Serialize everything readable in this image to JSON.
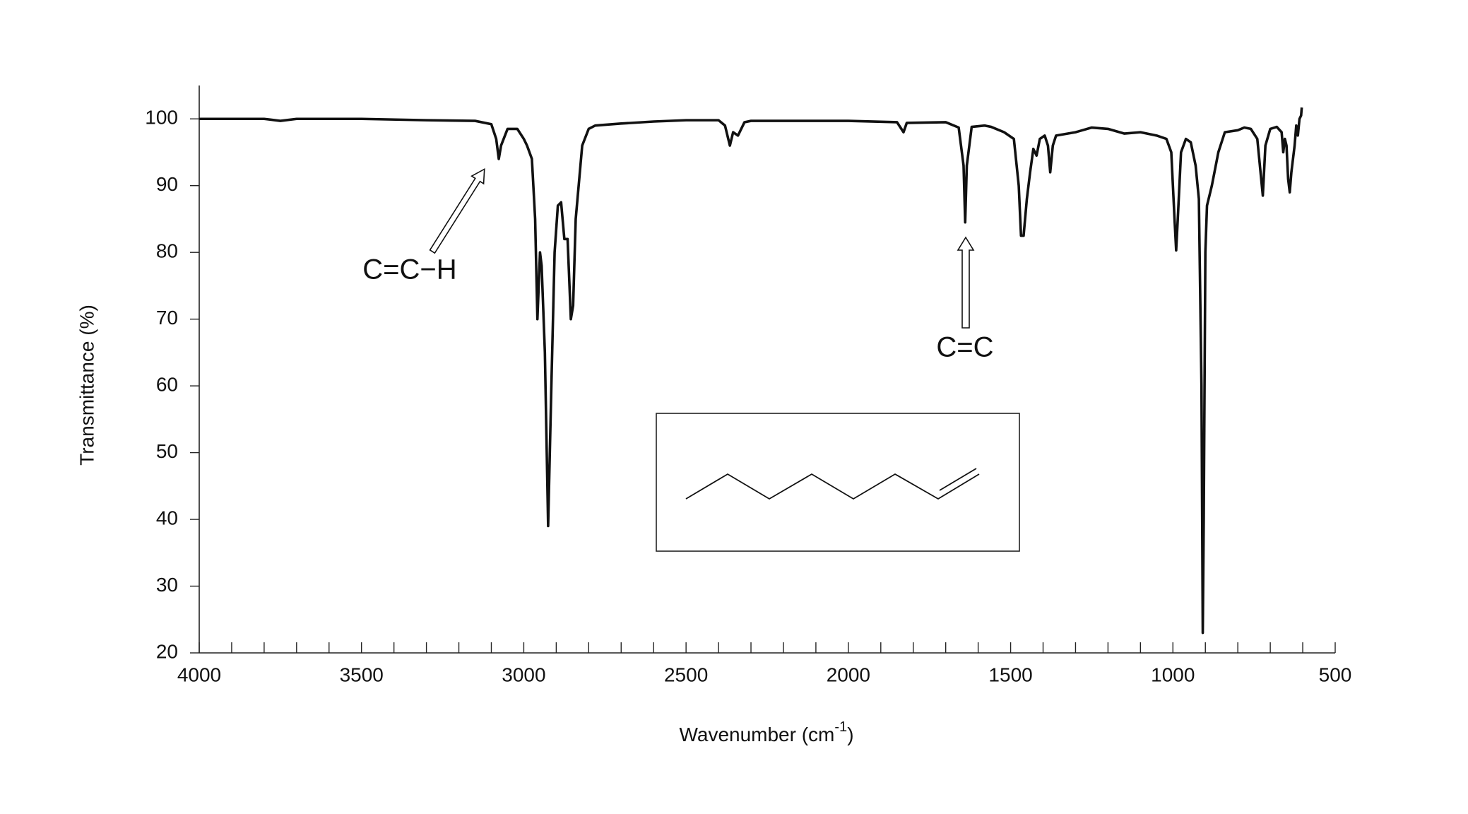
{
  "chart_data": {
    "type": "line",
    "y_label": "Transmittance (%)",
    "x_label": {
      "text": "Wavenumber (cm",
      "sup": "-1",
      "tail": ")"
    },
    "annotations": [
      "C=C−H",
      "C=C"
    ],
    "color": "#111111",
    "xlim": [
      4000,
      500
    ],
    "ylim": [
      20,
      105
    ],
    "xticks": [
      4000,
      3500,
      3000,
      2500,
      2000,
      1500,
      1000,
      500
    ],
    "xminorticks": [
      3900,
      3800,
      3700,
      3600,
      3400,
      3300,
      3200,
      3100,
      2900,
      2800,
      2700,
      2600,
      2400,
      2300,
      2200,
      2100,
      1900,
      1800,
      1700,
      1600,
      1400,
      1300,
      1200,
      1100,
      900,
      800,
      700,
      600
    ],
    "yticks": [
      20,
      30,
      40,
      50,
      60,
      70,
      80,
      90,
      100
    ],
    "x": [
      4000,
      3800,
      3750,
      3700,
      3500,
      3300,
      3150,
      3100,
      3085,
      3077,
      3070,
      3050,
      3020,
      3000,
      2990,
      2975,
      2965,
      2958,
      2950,
      2945,
      2935,
      2925,
      2915,
      2905,
      2895,
      2885,
      2875,
      2865,
      2855,
      2848,
      2840,
      2820,
      2800,
      2780,
      2700,
      2600,
      2500,
      2400,
      2380,
      2365,
      2355,
      2340,
      2320,
      2300,
      2000,
      1850,
      1830,
      1820,
      1700,
      1660,
      1645,
      1640,
      1635,
      1620,
      1580,
      1560,
      1520,
      1490,
      1475,
      1468,
      1460,
      1450,
      1440,
      1430,
      1420,
      1410,
      1395,
      1385,
      1378,
      1370,
      1360,
      1300,
      1250,
      1200,
      1150,
      1100,
      1050,
      1020,
      1005,
      995,
      990,
      985,
      975,
      960,
      945,
      930,
      920,
      912,
      908,
      905,
      900,
      895,
      880,
      860,
      840,
      800,
      780,
      760,
      740,
      730,
      723,
      715,
      700,
      680,
      665,
      660,
      655,
      650,
      645,
      640,
      635,
      630,
      625,
      620,
      615,
      610,
      605,
      603
    ],
    "values": [
      100,
      100,
      99.7,
      100,
      100,
      99.8,
      99.7,
      99.2,
      97,
      94,
      96,
      98.5,
      98.5,
      97,
      96,
      94,
      85,
      70,
      80,
      78,
      65,
      39,
      60,
      80,
      87,
      87.5,
      82,
      82,
      70,
      72,
      85,
      96,
      98.5,
      99,
      99.3,
      99.6,
      99.8,
      99.8,
      99,
      96,
      98,
      97.5,
      99.5,
      99.7,
      99.7,
      99.5,
      98,
      99.4,
      99.5,
      98.7,
      93,
      84.5,
      93,
      98.8,
      99,
      98.8,
      98,
      97,
      90,
      82.5,
      82.5,
      88,
      92,
      95.5,
      94.5,
      97,
      97.5,
      96,
      92,
      96,
      97.5,
      98,
      98.7,
      98.5,
      97.8,
      98,
      97.5,
      97,
      95,
      85,
      80.3,
      85,
      95,
      97,
      96.5,
      93,
      88,
      60,
      23,
      40,
      80,
      87,
      90,
      95,
      98,
      98.3,
      98.7,
      98.5,
      97,
      92,
      88.5,
      96,
      98.5,
      98.8,
      98,
      95,
      97,
      96,
      91,
      89,
      92,
      94,
      96,
      99,
      97.5,
      100,
      100.5,
      101.7
    ]
  }
}
